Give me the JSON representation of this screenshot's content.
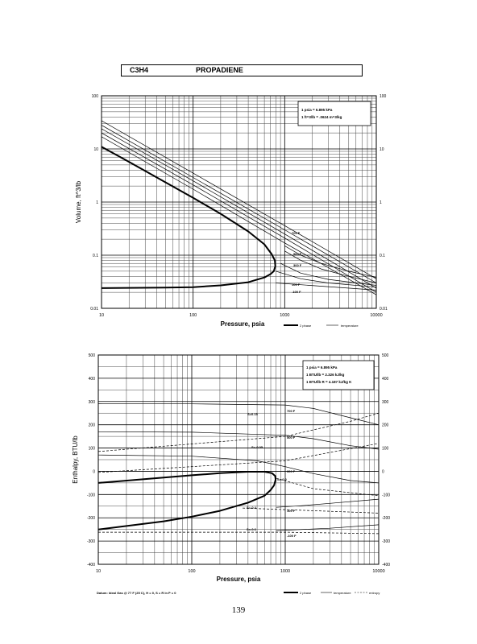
{
  "header": {
    "formula": "C3H4",
    "name": "PROPADIENE"
  },
  "page_number": "139",
  "chart_data": [
    {
      "type": "line",
      "xscale": "log",
      "yscale": "log",
      "xlim": [
        10,
        10000
      ],
      "ylim": [
        0.01,
        100
      ],
      "xlabel": "Pressure,  psia",
      "ylabel": "Volume, ft^3/lb",
      "x_ticks": [
        "10",
        "100",
        "1000",
        "10000"
      ],
      "y_ticks": [
        "0.01",
        "0.1",
        "1",
        "10",
        "100"
      ],
      "notes": [
        "1 psia = 6.895 kPa",
        "1 ft^3/lb = .0624 m^3/kg"
      ],
      "legend": [
        "2 phase",
        "temperature"
      ],
      "isotherm_labels": [
        "700 F",
        "500 F",
        "300 F",
        "100 F",
        "-100 F"
      ],
      "series": [
        {
          "x": [
            10,
            20,
            50,
            100,
            200,
            400,
            600,
            720,
            780,
            790,
            760,
            700,
            600,
            400,
            200,
            100,
            50,
            10
          ],
          "y": [
            11,
            5.7,
            2.35,
            1.2,
            0.6,
            0.28,
            0.16,
            0.105,
            0.08,
            0.062,
            0.05,
            0.044,
            0.038,
            0.031,
            0.027,
            0.025,
            0.0245,
            0.024
          ]
        },
        {
          "x": [
            10,
            100,
            1000,
            10000
          ],
          "y": [
            17,
            1.75,
            0.17,
            0.018
          ]
        },
        {
          "x": [
            10,
            100,
            1000,
            10000
          ],
          "y": [
            20,
            2.1,
            0.21,
            0.02
          ]
        },
        {
          "x": [
            10,
            100,
            1000,
            10000
          ],
          "y": [
            24,
            2.5,
            0.25,
            0.024
          ]
        },
        {
          "x": [
            10,
            100,
            1000,
            10000
          ],
          "y": [
            28,
            2.9,
            0.3,
            0.03
          ]
        },
        {
          "x": [
            10,
            100,
            1000,
            10000
          ],
          "y": [
            34,
            3.5,
            0.36,
            0.036
          ]
        },
        {
          "x": [
            1000,
            1500,
            2500,
            5000,
            10000
          ],
          "y": [
            0.15,
            0.1,
            0.07,
            0.05,
            0.038
          ]
        },
        {
          "x": [
            1000,
            1500,
            2500,
            5000,
            10000
          ],
          "y": [
            0.12,
            0.08,
            0.055,
            0.04,
            0.03
          ]
        },
        {
          "x": [
            900,
            1500,
            3000,
            10000
          ],
          "y": [
            0.07,
            0.046,
            0.035,
            0.027
          ]
        },
        {
          "x": [
            800,
            1500,
            3000,
            10000
          ],
          "y": [
            0.05,
            0.036,
            0.03,
            0.025
          ]
        },
        {
          "x": [
            800,
            10000
          ],
          "y": [
            0.03,
            0.022
          ]
        }
      ]
    },
    {
      "type": "line",
      "xscale": "log",
      "xlim": [
        10,
        10000
      ],
      "ylim": [
        -400,
        500
      ],
      "xlabel": "Pressure,  psia",
      "ylabel": "Enthalpy, BTU/lb",
      "x_ticks": [
        "10",
        "100",
        "1000",
        "10000"
      ],
      "y_ticks_left": [
        "-400",
        "-300",
        "-200",
        "-100",
        "0",
        "100",
        "200",
        "300",
        "400",
        "500"
      ],
      "y_ticks_right": [
        "-400",
        "-300",
        "-200",
        "-100",
        "0",
        "100",
        "200",
        "300",
        "400",
        "500"
      ],
      "notes": [
        "1 psia = 6.895 kPa",
        "1 BTU/lb = 2.326 kJ/kg",
        "1 BTU/lb R = 4.187 kJ/kg K"
      ],
      "legend": [
        "2 phase",
        "temperature",
        "entropy"
      ],
      "footnote": "Datum: Ideal Gas @ 77 F (25 C), H = 0, S = R ln P = 0",
      "isotherm_labels": [
        "700 F",
        "500 F",
        "300 F",
        "100 F",
        "-100 F"
      ],
      "entropy_labels": [
        "S=0.15",
        "S=-0.05",
        "S=-0.2",
        "S=-0.4",
        "S=-0.6"
      ],
      "series": [
        {
          "x": [
            10,
            50,
            100,
            200,
            400,
            600,
            720,
            780,
            790,
            760,
            700,
            600,
            400,
            200,
            100,
            50,
            10
          ],
          "y": [
            -50,
            -27,
            -17,
            -8,
            -2,
            -2,
            -8,
            -20,
            -35,
            -60,
            -80,
            -105,
            -135,
            -170,
            -195,
            -215,
            -250
          ]
        },
        {
          "x": [
            10,
            100,
            1000,
            2000,
            5000,
            10000
          ],
          "y": [
            291,
            290,
            285,
            270,
            230,
            200
          ]
        },
        {
          "x": [
            10,
            100,
            1000,
            2000,
            5000,
            10000
          ],
          "y": [
            170,
            168,
            155,
            140,
            110,
            95
          ]
        },
        {
          "x": [
            10,
            100,
            500,
            1000,
            2000,
            5000,
            10000
          ],
          "y": [
            70,
            65,
            45,
            20,
            -10,
            -40,
            -50
          ]
        },
        {
          "x": [
            800,
            1500,
            3000,
            10000
          ],
          "y": [
            -155,
            -148,
            -138,
            -120
          ]
        },
        {
          "x": [
            800,
            3000,
            10000
          ],
          "y": [
            -255,
            -245,
            -230
          ]
        },
        {
          "x": [
            10,
            1000,
            5000,
            10000
          ],
          "y": [
            85,
            150,
            215,
            250
          ]
        },
        {
          "x": [
            10,
            1000,
            10000
          ],
          "y": [
            -5,
            45,
            120
          ]
        },
        {
          "x": [
            800,
            2000,
            10000
          ],
          "y": [
            -30,
            -75,
            -105
          ]
        },
        {
          "x": [
            350,
            1000,
            10000
          ],
          "y": [
            -158,
            -165,
            -180
          ]
        },
        {
          "x": [
            10,
            1000,
            10000
          ],
          "y": [
            -262,
            -262,
            -268
          ]
        }
      ]
    }
  ]
}
